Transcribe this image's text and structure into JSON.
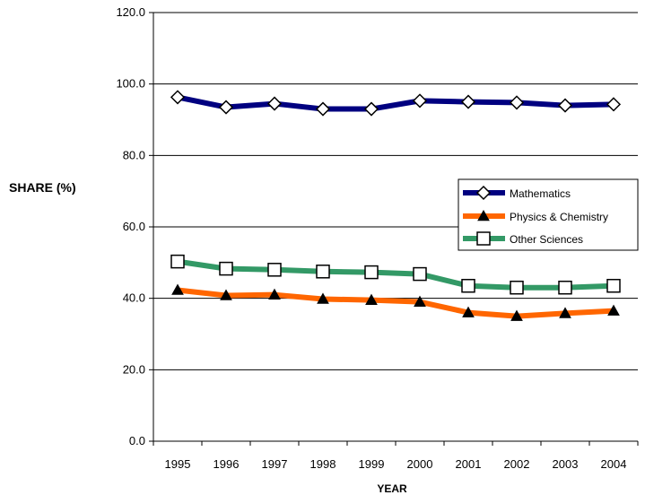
{
  "chart_data": {
    "type": "line",
    "title": "",
    "xlabel": "YEAR",
    "ylabel": "SHARE (%)",
    "categories": [
      "1995",
      "1996",
      "1997",
      "1998",
      "1999",
      "2000",
      "2001",
      "2002",
      "2003",
      "2004"
    ],
    "ylim": [
      0,
      120
    ],
    "yticks": [
      "0.0",
      "20.0",
      "40.0",
      "60.0",
      "80.0",
      "100.0",
      "120.0"
    ],
    "grid": true,
    "legend_position": "right",
    "series": [
      {
        "name": "Mathematics",
        "marker": "diamond",
        "color": "#000080",
        "values": [
          96.3,
          93.5,
          94.5,
          93.0,
          93.0,
          95.3,
          95.0,
          94.8,
          94.0,
          94.3
        ]
      },
      {
        "name": "Physics & Chemistry",
        "marker": "triangle",
        "color": "#ff6600",
        "values": [
          42.3,
          40.8,
          41.0,
          39.8,
          39.5,
          39.0,
          36.0,
          35.0,
          35.8,
          36.5
        ]
      },
      {
        "name": "Other Sciences",
        "marker": "square",
        "color": "#339966",
        "values": [
          50.3,
          48.3,
          48.0,
          47.5,
          47.3,
          46.8,
          43.5,
          43.0,
          43.0,
          43.5
        ]
      }
    ]
  }
}
